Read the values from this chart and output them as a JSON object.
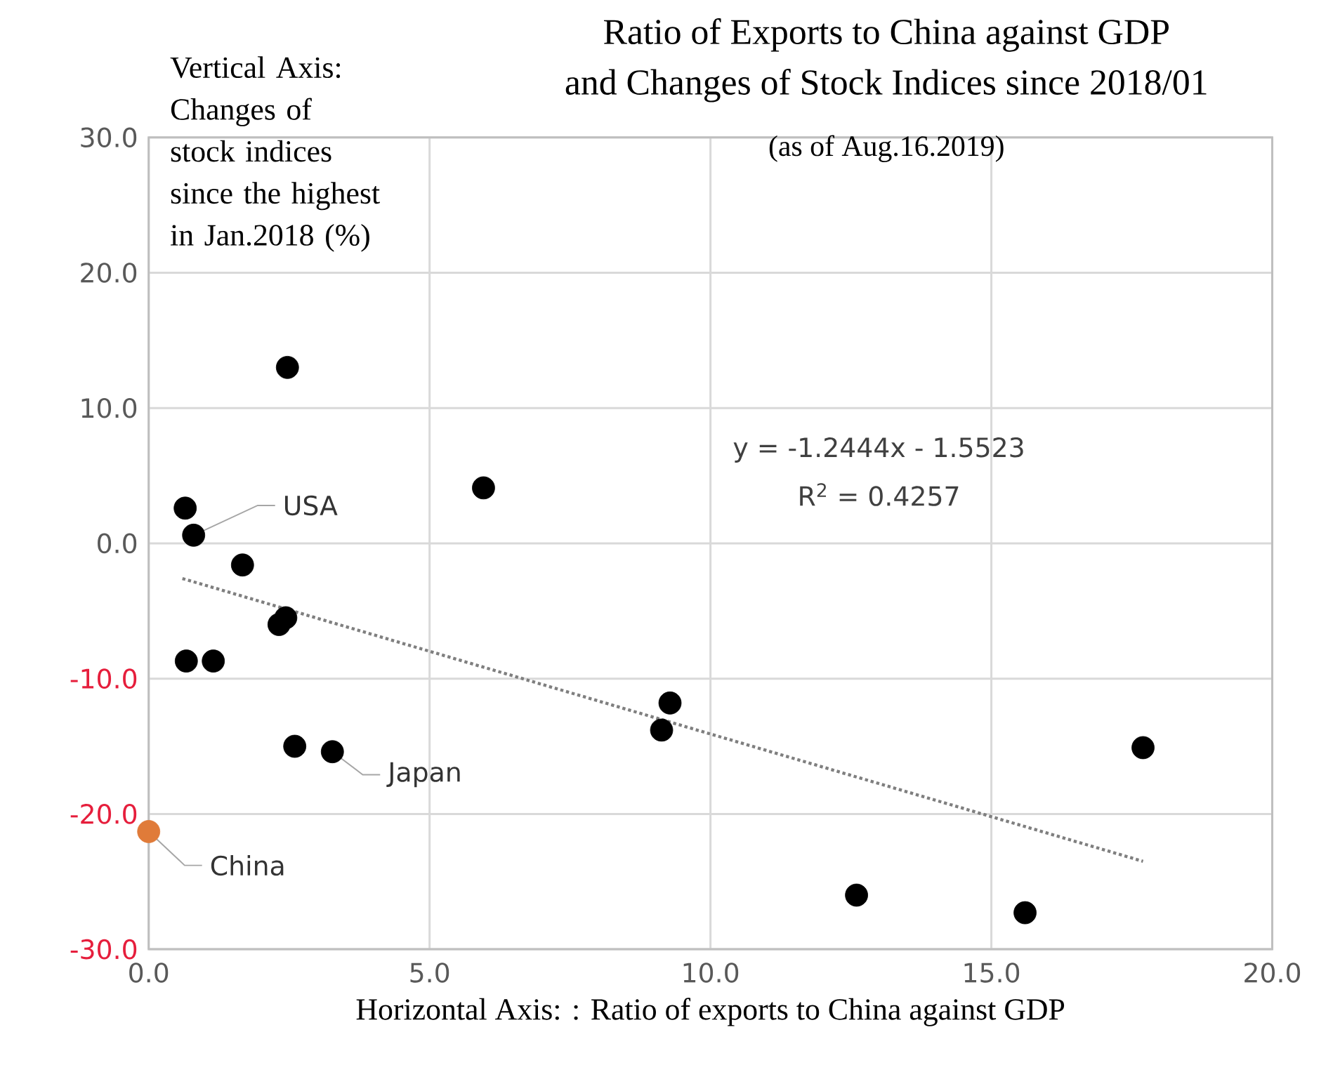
{
  "chart_data": {
    "type": "scatter",
    "title": "Ratio of Exports to China against GDP\nand Changes of Stock Indices since 2018/01",
    "subtitle": "(as of Aug.16.2019)",
    "xlabel": "Horizontal Axis: : Ratio of exports to China against GDP",
    "ylabel": "Vertical Axis: Changes of stock indices since the highest in Jan.2018 (%)",
    "xlim": [
      0,
      20
    ],
    "ylim": [
      -30,
      30
    ],
    "xticks": [
      {
        "value": 0,
        "label": "0.0"
      },
      {
        "value": 5,
        "label": "5.0"
      },
      {
        "value": 10,
        "label": "10.0"
      },
      {
        "value": 15,
        "label": "15.0"
      },
      {
        "value": 20,
        "label": "20.0"
      }
    ],
    "yticks": [
      {
        "value": -30,
        "label": "-30.0"
      },
      {
        "value": -20,
        "label": "-20.0"
      },
      {
        "value": -10,
        "label": "-10.0"
      },
      {
        "value": 0,
        "label": "0.0"
      },
      {
        "value": 10,
        "label": "10.0"
      },
      {
        "value": 20,
        "label": "20.0"
      },
      {
        "value": 30,
        "label": "30.0"
      }
    ],
    "grid": true,
    "marker": "circle",
    "series": [
      {
        "color": "#000000",
        "x": [
          2.47,
          0.65,
          0.8,
          1.67,
          2.44,
          2.32,
          0.67,
          1.15,
          5.96,
          2.6,
          3.27,
          9.28,
          9.13,
          17.7,
          12.6,
          15.6
        ],
        "values": [
          13.0,
          2.6,
          0.6,
          -1.6,
          -5.5,
          -6.0,
          -8.7,
          -8.7,
          4.1,
          -15.0,
          -15.4,
          -11.8,
          -13.8,
          -15.1,
          -26.0,
          -27.3
        ]
      },
      {
        "color": "#e07b39",
        "x": [
          0
        ],
        "values": [
          -21.3
        ]
      },
      {
        "type": "line",
        "color": "#7f7f7f",
        "line_style": "dotted",
        "marker": "none",
        "x": [
          0.6,
          17.7
        ],
        "values": [
          -2.6,
          -23.5
        ]
      }
    ],
    "annotations": [
      "y = -1.2444x - 1.5523",
      "R$^{2}$ = 0.4257",
      {
        "text": "USA",
        "x": 0.8,
        "y": 0.6
      },
      {
        "text": "Japan",
        "x": 3.27,
        "y": -15.4
      },
      {
        "text": "China",
        "x": 0,
        "y": -21.3
      }
    ]
  }
}
